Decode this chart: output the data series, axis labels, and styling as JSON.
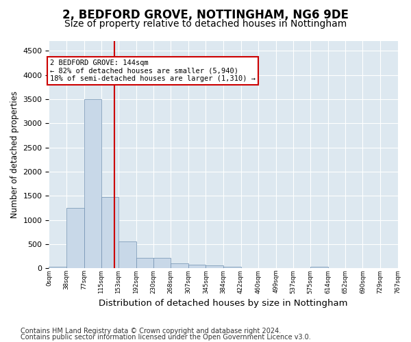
{
  "title1": "2, BEDFORD GROVE, NOTTINGHAM, NG6 9DE",
  "title2": "Size of property relative to detached houses in Nottingham",
  "xlabel": "Distribution of detached houses by size in Nottingham",
  "ylabel": "Number of detached properties",
  "footer1": "Contains HM Land Registry data © Crown copyright and database right 2024.",
  "footer2": "Contains public sector information licensed under the Open Government Licence v3.0.",
  "bin_edges": [
    0,
    38,
    77,
    115,
    153,
    192,
    230,
    268,
    307,
    345,
    384,
    422,
    460,
    499,
    537,
    575,
    614,
    652,
    690,
    729,
    767
  ],
  "bin_counts": [
    30,
    1250,
    3500,
    1470,
    560,
    215,
    215,
    110,
    75,
    60,
    40,
    0,
    0,
    0,
    0,
    40,
    0,
    0,
    0,
    0
  ],
  "bar_color": "#c8d8e8",
  "bar_edge_color": "#7090b0",
  "vline_x": 144,
  "vline_color": "#cc0000",
  "annotation_line1": "2 BEDFORD GROVE: 144sqm",
  "annotation_line2": "← 82% of detached houses are smaller (5,940)",
  "annotation_line3": "18% of semi-detached houses are larger (1,310) →",
  "ylim": [
    0,
    4700
  ],
  "yticks": [
    0,
    500,
    1000,
    1500,
    2000,
    2500,
    3000,
    3500,
    4000,
    4500
  ],
  "background_color": "#dde8f0",
  "grid_color": "#ffffff",
  "title1_fontsize": 12,
  "title2_fontsize": 10,
  "xlabel_fontsize": 9.5,
  "ylabel_fontsize": 8.5,
  "footer_fontsize": 7
}
